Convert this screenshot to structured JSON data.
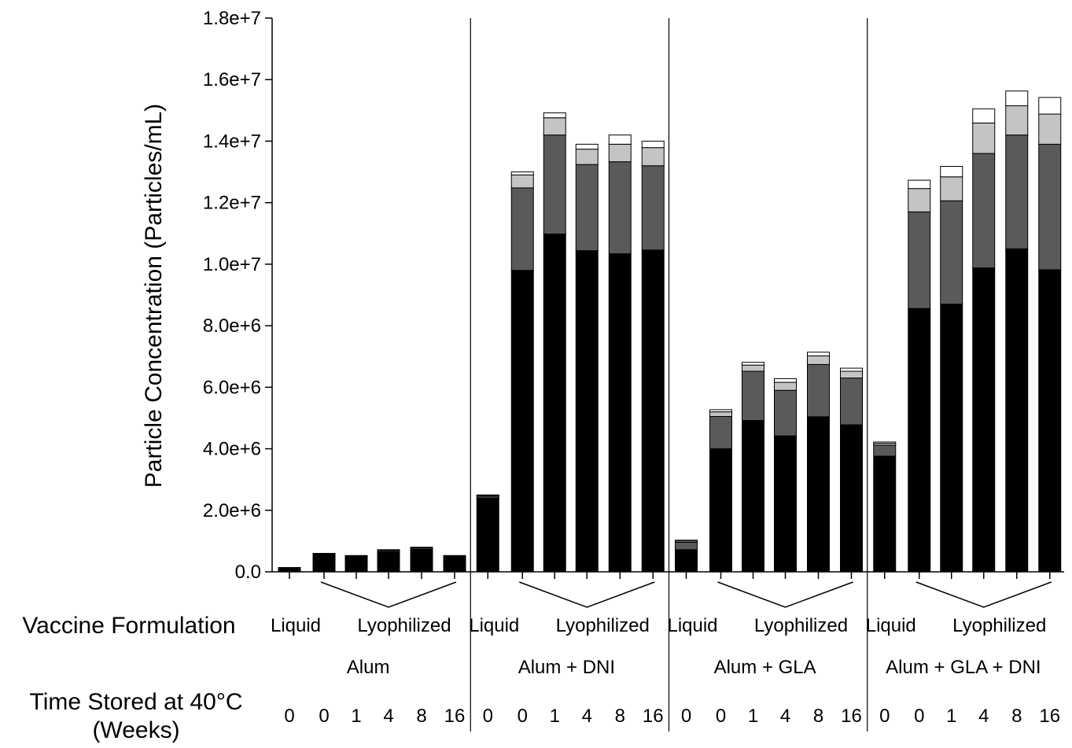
{
  "chart_data": {
    "type": "bar",
    "stacked": true,
    "title": "",
    "ylabel": "Particle Concentration (Particles/mL)",
    "ylim": [
      0,
      18000000
    ],
    "y_ticks": [
      0,
      2000000,
      4000000,
      6000000,
      8000000,
      10000000,
      12000000,
      14000000,
      16000000,
      18000000
    ],
    "y_tick_labels": [
      "0.0",
      "2.0e+6",
      "4.0e+6",
      "6.0e+6",
      "8.0e+6",
      "1.0e+7",
      "1.2e+7",
      "1.4e+7",
      "1.6e+7",
      "1.8e+7"
    ],
    "row_labels": {
      "formulation": "Vaccine Formulation",
      "time_line1": "Time Stored at 40°C",
      "time_line2": "(Weeks)"
    },
    "state_labels": {
      "liquid": "Liquid",
      "lyophilized": "Lyophilized"
    },
    "time_labels": [
      "0",
      "0",
      "1",
      "4",
      "8",
      "16"
    ],
    "segment_colors": [
      "#000000",
      "#5a5a5a",
      "#c4c4c4",
      "#ffffff"
    ],
    "groups": [
      {
        "name": "Alum",
        "bars": [
          [
            100000,
            20000,
            10000,
            10000
          ],
          [
            550000,
            30000,
            10000,
            10000
          ],
          [
            480000,
            30000,
            10000,
            10000
          ],
          [
            660000,
            40000,
            10000,
            10000
          ],
          [
            740000,
            40000,
            10000,
            10000
          ],
          [
            480000,
            30000,
            10000,
            10000
          ]
        ]
      },
      {
        "name": "Alum + DNI",
        "bars": [
          [
            2400000,
            60000,
            20000,
            20000
          ],
          [
            9800000,
            2680000,
            420000,
            100000
          ],
          [
            10980000,
            3220000,
            560000,
            160000
          ],
          [
            10440000,
            2800000,
            500000,
            160000
          ],
          [
            10340000,
            2990000,
            570000,
            300000
          ],
          [
            10460000,
            2740000,
            590000,
            210000
          ]
        ]
      },
      {
        "name": "Alum + GLA",
        "bars": [
          [
            720000,
            240000,
            40000,
            30000
          ],
          [
            4000000,
            1050000,
            150000,
            70000
          ],
          [
            4920000,
            1600000,
            200000,
            90000
          ],
          [
            4420000,
            1480000,
            260000,
            120000
          ],
          [
            5040000,
            1700000,
            280000,
            120000
          ],
          [
            4780000,
            1520000,
            220000,
            100000
          ]
        ]
      },
      {
        "name": "Alum + GLA + DNI",
        "bars": [
          [
            3760000,
            360000,
            60000,
            40000
          ],
          [
            8560000,
            3140000,
            760000,
            270000
          ],
          [
            8700000,
            3360000,
            780000,
            340000
          ],
          [
            9880000,
            3720000,
            990000,
            460000
          ],
          [
            10500000,
            3700000,
            950000,
            480000
          ],
          [
            9820000,
            4080000,
            980000,
            540000
          ]
        ]
      }
    ]
  }
}
